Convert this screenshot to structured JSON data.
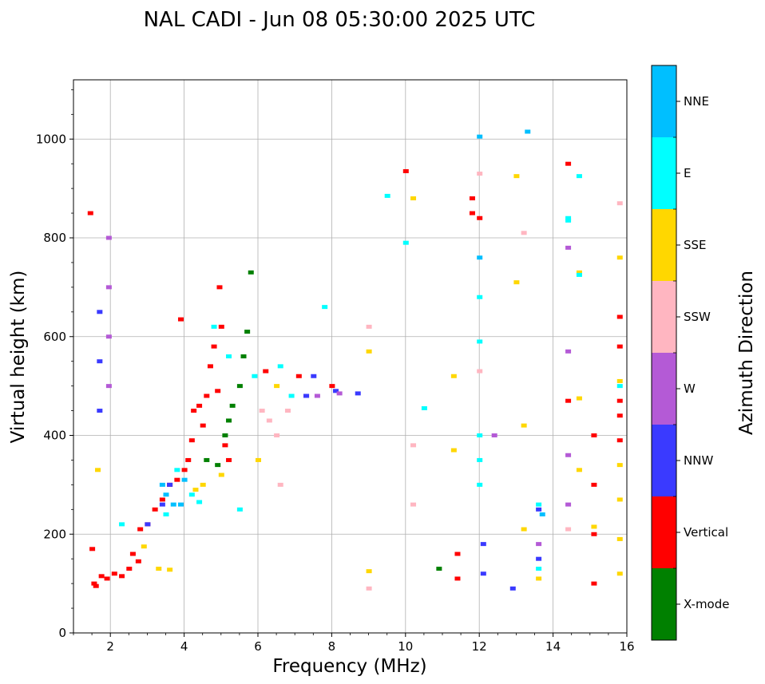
{
  "chart_data": {
    "type": "scatter",
    "title": "NAL CADI - Jun 08 05:30:00 2025 UTC",
    "xlabel": "Frequency (MHz)",
    "ylabel": "Virtual height (km)",
    "xlim": [
      1,
      16
    ],
    "ylim": [
      0,
      1120
    ],
    "xticks": [
      2,
      4,
      6,
      8,
      10,
      12,
      14,
      16
    ],
    "yticks": [
      0,
      200,
      400,
      600,
      800,
      1000
    ],
    "grid": true,
    "colorbar": {
      "label": "Azimuth Direction",
      "categories": [
        {
          "name": "X-mode",
          "color": "#008000"
        },
        {
          "name": "Vertical",
          "color": "#ff0000"
        },
        {
          "name": "NNW",
          "color": "#3a3aff"
        },
        {
          "name": "W",
          "color": "#b45ad6"
        },
        {
          "name": "SSW",
          "color": "#ffb6c1"
        },
        {
          "name": "SSE",
          "color": "#ffd700"
        },
        {
          "name": "E",
          "color": "#00ffff"
        },
        {
          "name": "NNE",
          "color": "#00bfff"
        }
      ]
    },
    "series": [
      {
        "name": "Vertical",
        "points": [
          [
            1.45,
            850
          ],
          [
            1.5,
            170
          ],
          [
            1.55,
            100
          ],
          [
            1.6,
            95
          ],
          [
            1.75,
            115
          ],
          [
            1.9,
            110
          ],
          [
            2.1,
            120
          ],
          [
            2.3,
            115
          ],
          [
            2.5,
            130
          ],
          [
            2.6,
            160
          ],
          [
            2.75,
            145
          ],
          [
            2.8,
            210
          ],
          [
            3.0,
            220
          ],
          [
            3.2,
            250
          ],
          [
            3.4,
            270
          ],
          [
            3.6,
            300
          ],
          [
            3.8,
            310
          ],
          [
            3.9,
            635
          ],
          [
            4.0,
            330
          ],
          [
            4.1,
            350
          ],
          [
            4.2,
            390
          ],
          [
            4.25,
            450
          ],
          [
            4.4,
            460
          ],
          [
            4.5,
            420
          ],
          [
            4.6,
            480
          ],
          [
            4.7,
            540
          ],
          [
            4.8,
            580
          ],
          [
            4.9,
            490
          ],
          [
            4.95,
            700
          ],
          [
            5.0,
            620
          ],
          [
            5.1,
            380
          ],
          [
            5.2,
            350
          ],
          [
            6.2,
            530
          ],
          [
            7.1,
            520
          ],
          [
            7.3,
            480
          ],
          [
            8.0,
            500
          ],
          [
            10.0,
            935
          ],
          [
            11.4,
            160
          ],
          [
            11.4,
            110
          ],
          [
            11.8,
            880
          ],
          [
            11.8,
            850
          ],
          [
            12.0,
            840
          ],
          [
            14.4,
            950
          ],
          [
            14.4,
            470
          ],
          [
            15.1,
            400
          ],
          [
            15.1,
            300
          ],
          [
            15.1,
            200
          ],
          [
            15.1,
            100
          ],
          [
            15.8,
            640
          ],
          [
            15.8,
            580
          ],
          [
            15.8,
            470
          ],
          [
            15.8,
            440
          ],
          [
            15.8,
            390
          ]
        ]
      },
      {
        "name": "X-mode",
        "points": [
          [
            4.6,
            350
          ],
          [
            4.9,
            340
          ],
          [
            5.1,
            400
          ],
          [
            5.2,
            430
          ],
          [
            5.3,
            460
          ],
          [
            5.5,
            500
          ],
          [
            5.6,
            560
          ],
          [
            5.7,
            610
          ],
          [
            5.8,
            730
          ],
          [
            10.9,
            130
          ]
        ]
      },
      {
        "name": "NNW",
        "points": [
          [
            1.7,
            650
          ],
          [
            1.7,
            550
          ],
          [
            1.7,
            450
          ],
          [
            3.0,
            220
          ],
          [
            3.4,
            260
          ],
          [
            3.6,
            300
          ],
          [
            7.3,
            480
          ],
          [
            7.5,
            520
          ],
          [
            8.1,
            490
          ],
          [
            8.7,
            485
          ],
          [
            12.1,
            180
          ],
          [
            12.1,
            120
          ],
          [
            13.6,
            250
          ],
          [
            13.6,
            150
          ],
          [
            12.9,
            90
          ]
        ]
      },
      {
        "name": "W",
        "points": [
          [
            1.95,
            800
          ],
          [
            1.95,
            700
          ],
          [
            1.95,
            600
          ],
          [
            1.95,
            500
          ],
          [
            7.6,
            480
          ],
          [
            8.2,
            485
          ],
          [
            12.4,
            400
          ],
          [
            13.6,
            180
          ],
          [
            14.4,
            570
          ],
          [
            14.4,
            360
          ],
          [
            14.4,
            260
          ],
          [
            14.4,
            780
          ]
        ]
      },
      {
        "name": "SSW",
        "points": [
          [
            6.1,
            450
          ],
          [
            6.3,
            430
          ],
          [
            6.5,
            400
          ],
          [
            6.6,
            300
          ],
          [
            6.8,
            450
          ],
          [
            9.0,
            620
          ],
          [
            9.0,
            90
          ],
          [
            10.2,
            380
          ],
          [
            10.2,
            260
          ],
          [
            12.0,
            930
          ],
          [
            12.0,
            530
          ],
          [
            13.2,
            810
          ],
          [
            14.4,
            210
          ],
          [
            15.8,
            870
          ]
        ]
      },
      {
        "name": "SSE",
        "points": [
          [
            1.65,
            330
          ],
          [
            2.9,
            175
          ],
          [
            3.3,
            130
          ],
          [
            3.6,
            128
          ],
          [
            4.3,
            290
          ],
          [
            4.5,
            300
          ],
          [
            5.0,
            320
          ],
          [
            6.0,
            350
          ],
          [
            6.5,
            500
          ],
          [
            9.0,
            570
          ],
          [
            9.0,
            125
          ],
          [
            10.2,
            880
          ],
          [
            11.3,
            520
          ],
          [
            11.3,
            370
          ],
          [
            13.0,
            925
          ],
          [
            13.0,
            710
          ],
          [
            13.2,
            420
          ],
          [
            13.2,
            210
          ],
          [
            13.6,
            110
          ],
          [
            14.7,
            730
          ],
          [
            14.7,
            475
          ],
          [
            14.7,
            330
          ],
          [
            15.1,
            215
          ],
          [
            15.8,
            760
          ],
          [
            15.8,
            510
          ],
          [
            15.8,
            340
          ],
          [
            15.8,
            270
          ],
          [
            15.8,
            190
          ],
          [
            15.8,
            120
          ]
        ]
      },
      {
        "name": "E",
        "points": [
          [
            2.3,
            220
          ],
          [
            3.5,
            240
          ],
          [
            3.8,
            330
          ],
          [
            4.2,
            280
          ],
          [
            4.4,
            265
          ],
          [
            4.8,
            620
          ],
          [
            5.2,
            560
          ],
          [
            5.5,
            250
          ],
          [
            5.9,
            520
          ],
          [
            6.6,
            540
          ],
          [
            6.9,
            480
          ],
          [
            7.8,
            660
          ],
          [
            9.5,
            885
          ],
          [
            10.0,
            790
          ],
          [
            10.5,
            455
          ],
          [
            12.0,
            680
          ],
          [
            12.0,
            590
          ],
          [
            12.0,
            400
          ],
          [
            12.0,
            350
          ],
          [
            12.0,
            300
          ],
          [
            13.6,
            260
          ],
          [
            13.6,
            130
          ],
          [
            14.4,
            840
          ],
          [
            14.4,
            835
          ],
          [
            14.7,
            925
          ],
          [
            14.7,
            725
          ],
          [
            15.8,
            500
          ]
        ]
      },
      {
        "name": "NNE",
        "points": [
          [
            3.4,
            300
          ],
          [
            3.5,
            280
          ],
          [
            3.7,
            260
          ],
          [
            3.9,
            260
          ],
          [
            4.0,
            310
          ],
          [
            12.0,
            1005
          ],
          [
            12.0,
            760
          ],
          [
            13.3,
            1015
          ],
          [
            13.7,
            240
          ]
        ]
      }
    ]
  }
}
